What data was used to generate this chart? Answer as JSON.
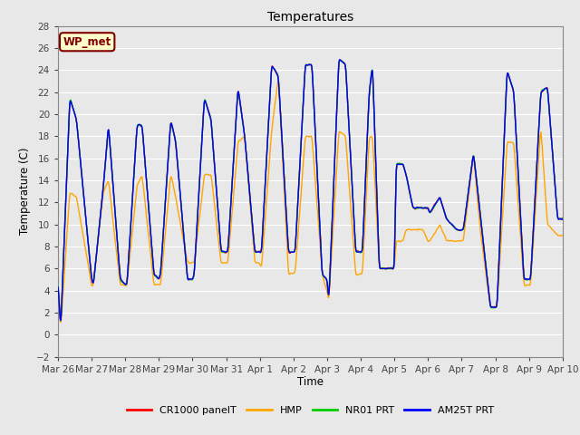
{
  "title": "Temperatures",
  "xlabel": "Time",
  "ylabel": "Temperature (C)",
  "ylim": [
    -2,
    28
  ],
  "annotation_text": "WP_met",
  "annotation_bbox": {
    "facecolor": "#FFFFCC",
    "edgecolor": "#800000",
    "boxstyle": "round,pad=0.3"
  },
  "annotation_color": "#800000",
  "legend_labels": [
    "CR1000 panelT",
    "HMP",
    "NR01 PRT",
    "AM25T PRT"
  ],
  "line_colors": [
    "#FF0000",
    "#FFA500",
    "#00CC00",
    "#0000FF"
  ],
  "xtick_labels": [
    "Mar 26",
    "Mar 27",
    "Mar 28",
    "Mar 29",
    "Mar 30",
    "Mar 31",
    "Apr 1",
    "Apr 2",
    "Apr 3",
    "Apr 4",
    "Apr 5",
    "Apr 6",
    "Apr 7",
    "Apr 8",
    "Apr 9",
    "Apr 10"
  ],
  "background_color": "#E8E8E8",
  "axes_bg_color": "#E8E8E8",
  "grid_color": "#FFFFFF",
  "figsize": [
    6.4,
    4.8
  ],
  "dpi": 100,
  "anchors_t": [
    0,
    0.08,
    0.35,
    0.55,
    1.0,
    1.05,
    1.35,
    1.5,
    1.85,
    2.0,
    2.05,
    2.35,
    2.5,
    2.85,
    3.0,
    3.05,
    3.35,
    3.5,
    3.85,
    4.0,
    4.05,
    4.35,
    4.55,
    4.85,
    5.0,
    5.05,
    5.35,
    5.55,
    5.85,
    6.0,
    6.05,
    6.35,
    6.55,
    6.85,
    7.0,
    7.05,
    7.35,
    7.55,
    7.85,
    8.0,
    8.05,
    8.35,
    8.55,
    8.85,
    9.0,
    9.05,
    9.25,
    9.35,
    9.55,
    9.85,
    10.0,
    10.05,
    10.25,
    10.35,
    10.55,
    10.85,
    11.0,
    11.05,
    11.35,
    11.55,
    11.85,
    12.0,
    12.05,
    12.35,
    12.55,
    12.85,
    13.0,
    13.05,
    13.35,
    13.55,
    13.85,
    14.0,
    14.05,
    14.35,
    14.55,
    14.85,
    15.0
  ],
  "anchors_v": [
    4.7,
    0.5,
    21.5,
    19.5,
    5.0,
    4.5,
    13.5,
    19.0,
    5.0,
    4.5,
    4.5,
    19.0,
    19.0,
    5.5,
    5.0,
    5.5,
    19.5,
    17.5,
    5.0,
    5.0,
    5.5,
    21.5,
    19.5,
    7.5,
    7.5,
    7.5,
    22.5,
    18.0,
    7.5,
    7.5,
    7.5,
    24.5,
    23.5,
    7.5,
    7.5,
    7.5,
    24.5,
    24.5,
    5.5,
    5.0,
    3.0,
    25.0,
    24.5,
    7.5,
    7.5,
    7.5,
    22.0,
    24.5,
    6.0,
    6.0,
    6.0,
    15.5,
    15.5,
    14.5,
    11.5,
    11.5,
    11.5,
    11.0,
    12.5,
    10.5,
    9.5,
    9.5,
    9.5,
    16.5,
    11.0,
    2.5,
    2.5,
    2.5,
    24.0,
    22.0,
    5.0,
    5.0,
    5.0,
    22.0,
    22.5,
    10.5,
    10.5
  ],
  "hmp_anchors_v": [
    4.5,
    0.5,
    13.0,
    12.5,
    4.5,
    4.5,
    13.0,
    14.0,
    4.5,
    4.5,
    4.5,
    13.5,
    14.5,
    4.5,
    4.5,
    4.5,
    14.5,
    12.5,
    6.5,
    6.5,
    6.5,
    14.5,
    14.5,
    6.5,
    6.5,
    6.5,
    17.5,
    18.0,
    6.5,
    6.5,
    6.0,
    18.5,
    23.5,
    5.5,
    5.5,
    5.5,
    18.0,
    18.0,
    5.5,
    4.0,
    3.0,
    18.5,
    18.0,
    5.5,
    5.5,
    5.5,
    18.0,
    18.0,
    6.0,
    6.0,
    6.0,
    8.5,
    8.5,
    9.5,
    9.5,
    9.5,
    8.5,
    8.5,
    10.0,
    8.5,
    8.5,
    8.5,
    8.5,
    16.5,
    9.5,
    2.5,
    2.5,
    2.5,
    17.5,
    17.5,
    4.5,
    4.5,
    4.5,
    19.0,
    10.0,
    9.0,
    9.0
  ]
}
